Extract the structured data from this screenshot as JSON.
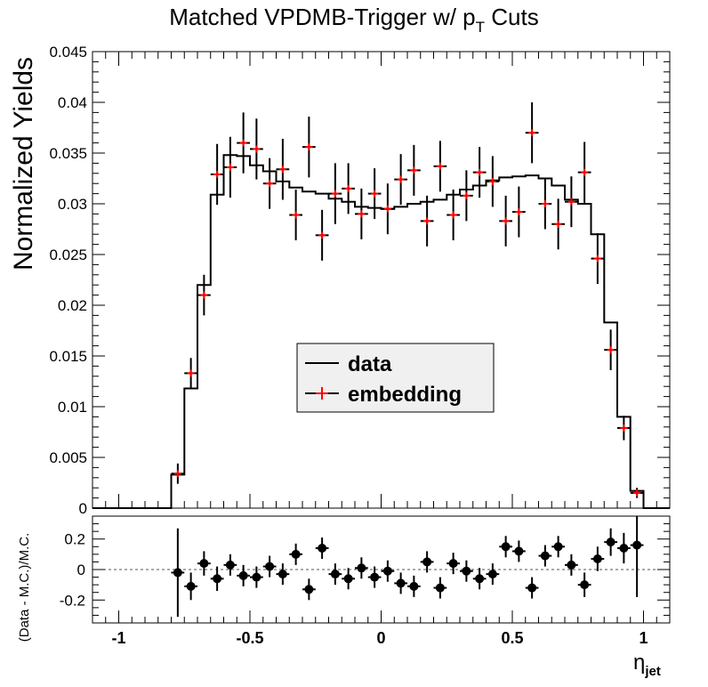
{
  "chart_data": [
    {
      "type": "histogram",
      "title_main": "Matched VPDMB-Trigger w/ p",
      "title_sub": "T",
      "title_suffix": " Cuts",
      "ylabel": "Normalized Yields",
      "xlim": [
        -1.1,
        1.1
      ],
      "ylim": [
        0,
        0.045
      ],
      "yticks": [
        {
          "v": 0,
          "label": "0"
        },
        {
          "v": 0.005,
          "label": "0.005"
        },
        {
          "v": 0.01,
          "label": "0.01"
        },
        {
          "v": 0.015,
          "label": "0.015"
        },
        {
          "v": 0.02,
          "label": "0.02"
        },
        {
          "v": 0.025,
          "label": "0.025"
        },
        {
          "v": 0.03,
          "label": "0.03"
        },
        {
          "v": 0.035,
          "label": "0.035"
        },
        {
          "v": 0.04,
          "label": "0.04"
        },
        {
          "v": 0.045,
          "label": "0.045"
        }
      ],
      "legend": {
        "position": "center-lower",
        "entries": [
          {
            "label": "data",
            "style": "line"
          },
          {
            "label": "embedding",
            "style": "marker"
          }
        ]
      },
      "colors": {
        "data": "#000000",
        "embedding": "#ff0000"
      },
      "series": [
        {
          "name": "data",
          "style": "step",
          "bin_edges": [
            -1.1,
            -0.8,
            -0.75,
            -0.7,
            -0.65,
            -0.6,
            -0.55,
            -0.5,
            -0.45,
            -0.4,
            -0.35,
            -0.3,
            -0.25,
            -0.2,
            -0.15,
            -0.1,
            -0.05,
            0,
            0.05,
            0.1,
            0.15,
            0.2,
            0.25,
            0.3,
            0.35,
            0.4,
            0.45,
            0.5,
            0.55,
            0.6,
            0.65,
            0.7,
            0.75,
            0.8,
            0.85,
            0.9,
            0.95,
            1.0,
            1.1
          ],
          "values": [
            0,
            0.0033,
            0.0118,
            0.022,
            0.0309,
            0.0348,
            0.0347,
            0.0338,
            0.0332,
            0.0322,
            0.0316,
            0.0312,
            0.031,
            0.0305,
            0.0302,
            0.0297,
            0.0296,
            0.0295,
            0.0297,
            0.03,
            0.0302,
            0.0304,
            0.0309,
            0.0314,
            0.0318,
            0.0323,
            0.0326,
            0.0327,
            0.0328,
            0.0325,
            0.0318,
            0.0304,
            0.03,
            0.027,
            0.0183,
            0.009,
            0.0017,
            0
          ]
        },
        {
          "name": "embedding",
          "style": "points",
          "x": [
            -0.775,
            -0.725,
            -0.675,
            -0.625,
            -0.575,
            -0.525,
            -0.475,
            -0.425,
            -0.375,
            -0.325,
            -0.275,
            -0.225,
            -0.175,
            -0.125,
            -0.075,
            -0.025,
            0.025,
            0.075,
            0.125,
            0.175,
            0.225,
            0.275,
            0.325,
            0.375,
            0.425,
            0.475,
            0.525,
            0.575,
            0.625,
            0.675,
            0.725,
            0.775,
            0.825,
            0.875,
            0.925,
            0.975
          ],
          "y": [
            0.0034,
            0.0133,
            0.021,
            0.0329,
            0.0336,
            0.036,
            0.0354,
            0.032,
            0.0334,
            0.0289,
            0.0356,
            0.0269,
            0.031,
            0.0315,
            0.029,
            0.031,
            0.0295,
            0.0324,
            0.0333,
            0.0283,
            0.0337,
            0.0289,
            0.0308,
            0.0331,
            0.0322,
            0.0283,
            0.0292,
            0.037,
            0.03,
            0.028,
            0.0302,
            0.0331,
            0.0246,
            0.0156,
            0.0079,
            0.0015
          ],
          "yerr": [
            0.001,
            0.0015,
            0.002,
            0.003,
            0.003,
            0.003,
            0.003,
            0.0025,
            0.003,
            0.0025,
            0.003,
            0.0025,
            0.003,
            0.0025,
            0.0025,
            0.0025,
            0.0025,
            0.0025,
            0.0025,
            0.0025,
            0.0025,
            0.0025,
            0.0025,
            0.0025,
            0.0025,
            0.0025,
            0.0025,
            0.003,
            0.0025,
            0.0025,
            0.0025,
            0.003,
            0.0025,
            0.002,
            0.0012,
            0.0005
          ]
        }
      ]
    },
    {
      "type": "scatter",
      "ylabel": "(Data - M.C.)/M.C.",
      "xlabel_main": "η",
      "xlabel_sub": "jet",
      "xlim": [
        -1.1,
        1.1
      ],
      "ylim": [
        -0.35,
        0.35
      ],
      "reference_line": 0,
      "xticks": [
        {
          "v": -1,
          "label": "-1"
        },
        {
          "v": -0.5,
          "label": "-0.5"
        },
        {
          "v": 0,
          "label": "0"
        },
        {
          "v": 0.5,
          "label": "0.5"
        },
        {
          "v": 1,
          "label": "1"
        }
      ],
      "yticks": [
        {
          "v": -0.2,
          "label": "-0.2"
        },
        {
          "v": 0,
          "label": "0"
        },
        {
          "v": 0.2,
          "label": "0.2"
        }
      ],
      "series": [
        {
          "name": "ratio",
          "x": [
            -0.775,
            -0.725,
            -0.675,
            -0.625,
            -0.575,
            -0.525,
            -0.475,
            -0.425,
            -0.375,
            -0.325,
            -0.275,
            -0.225,
            -0.175,
            -0.125,
            -0.075,
            -0.025,
            0.025,
            0.075,
            0.125,
            0.175,
            0.225,
            0.275,
            0.325,
            0.375,
            0.425,
            0.475,
            0.525,
            0.575,
            0.625,
            0.675,
            0.725,
            0.775,
            0.825,
            0.875,
            0.925,
            0.975
          ],
          "y": [
            -0.02,
            -0.11,
            0.04,
            -0.06,
            0.03,
            -0.04,
            -0.05,
            0.02,
            -0.03,
            0.1,
            -0.13,
            0.14,
            -0.03,
            -0.06,
            0.01,
            -0.05,
            -0.01,
            -0.09,
            -0.11,
            0.05,
            -0.12,
            0.04,
            -0.01,
            -0.06,
            -0.03,
            0.15,
            0.12,
            -0.12,
            0.09,
            0.15,
            0.03,
            -0.1,
            0.07,
            0.18,
            0.14,
            0.16
          ],
          "yerr": [
            0.29,
            0.09,
            0.08,
            0.08,
            0.07,
            0.07,
            0.07,
            0.07,
            0.07,
            0.07,
            0.07,
            0.07,
            0.07,
            0.07,
            0.07,
            0.07,
            0.07,
            0.07,
            0.07,
            0.07,
            0.07,
            0.07,
            0.07,
            0.07,
            0.07,
            0.07,
            0.07,
            0.07,
            0.07,
            0.07,
            0.07,
            0.08,
            0.08,
            0.09,
            0.1,
            0.34
          ]
        }
      ]
    }
  ]
}
